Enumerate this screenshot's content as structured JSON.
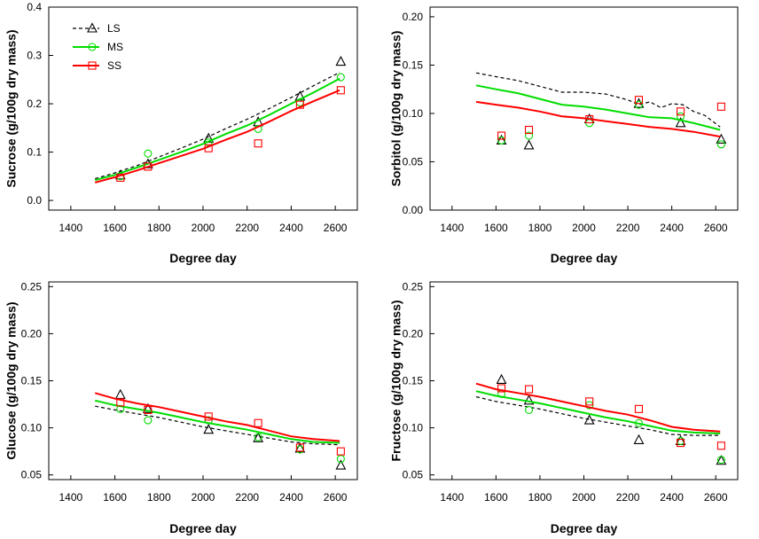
{
  "chart_data": [
    {
      "type": "line",
      "title": "",
      "xlabel": "Degree day",
      "ylabel": "Sucrose (g/100g dry mass)",
      "xlim": [
        1300,
        2700
      ],
      "ylim": [
        -0.02,
        0.4
      ],
      "xticks": [
        1400,
        1600,
        1800,
        2000,
        2200,
        2400,
        2600
      ],
      "yticks": [
        0.0,
        0.1,
        0.2,
        0.3,
        0.4
      ],
      "ytick_labels": [
        "0.0",
        "0.1",
        "0.2",
        "0.3",
        "0.4"
      ],
      "legend": {
        "show": true,
        "placement": "top-left"
      },
      "series": [
        {
          "name": "LS",
          "color": "#000000",
          "style": "dashed",
          "marker": "triangle",
          "line_x": [
            1510,
            1600,
            1700,
            1800,
            1900,
            2000,
            2100,
            2200,
            2300,
            2400,
            2500,
            2620
          ],
          "line_y": [
            0.045,
            0.057,
            0.072,
            0.09,
            0.108,
            0.127,
            0.148,
            0.168,
            0.19,
            0.213,
            0.237,
            0.265
          ],
          "points_x": [
            1625,
            1750,
            2025,
            2250,
            2440,
            2625
          ],
          "points_y": [
            0.052,
            0.075,
            0.128,
            0.162,
            0.215,
            0.287
          ]
        },
        {
          "name": "MS",
          "color": "#00dd00",
          "style": "solid",
          "marker": "circle",
          "line_x": [
            1510,
            1600,
            1700,
            1800,
            1900,
            2000,
            2100,
            2200,
            2300,
            2400,
            2500,
            2620
          ],
          "line_y": [
            0.042,
            0.053,
            0.068,
            0.084,
            0.1,
            0.117,
            0.137,
            0.155,
            0.177,
            0.2,
            0.223,
            0.252
          ],
          "points_x": [
            1625,
            1750,
            2025,
            2250,
            2440,
            2625
          ],
          "points_y": [
            0.05,
            0.097,
            0.12,
            0.148,
            0.203,
            0.255
          ]
        },
        {
          "name": "SS",
          "color": "#ff0000",
          "style": "solid",
          "marker": "square",
          "line_x": [
            1510,
            1600,
            1700,
            1800,
            1900,
            2000,
            2100,
            2200,
            2300,
            2400,
            2500,
            2620
          ],
          "line_y": [
            0.037,
            0.048,
            0.062,
            0.077,
            0.092,
            0.107,
            0.125,
            0.142,
            0.163,
            0.185,
            0.205,
            0.228
          ],
          "points_x": [
            1625,
            1750,
            2025,
            2250,
            2440,
            2625
          ],
          "points_y": [
            0.047,
            0.07,
            0.108,
            0.118,
            0.198,
            0.228
          ]
        }
      ]
    },
    {
      "type": "line",
      "title": "",
      "xlabel": "Degree day",
      "ylabel": "Sorbitol (g/100g dry mass)",
      "xlim": [
        1300,
        2700
      ],
      "ylim": [
        0.0,
        0.21
      ],
      "xticks": [
        1400,
        1600,
        1800,
        2000,
        2200,
        2400,
        2600
      ],
      "yticks": [
        0.0,
        0.05,
        0.1,
        0.15,
        0.2
      ],
      "ytick_labels": [
        "0.00",
        "0.05",
        "0.10",
        "0.15",
        "0.20"
      ],
      "legend": {
        "show": false,
        "placement": ""
      },
      "series": [
        {
          "name": "LS",
          "color": "#000000",
          "style": "dashed",
          "marker": "triangle",
          "line_x": [
            1510,
            1600,
            1700,
            1800,
            1900,
            2000,
            2100,
            2200,
            2250,
            2300,
            2350,
            2400,
            2450,
            2500,
            2550,
            2620
          ],
          "line_y": [
            0.142,
            0.138,
            0.134,
            0.128,
            0.122,
            0.122,
            0.12,
            0.114,
            0.109,
            0.112,
            0.106,
            0.11,
            0.109,
            0.102,
            0.098,
            0.086
          ],
          "points_x": [
            1625,
            1750,
            2025,
            2250,
            2440,
            2625
          ],
          "points_y": [
            0.072,
            0.067,
            0.094,
            0.11,
            0.09,
            0.073
          ]
        },
        {
          "name": "MS",
          "color": "#00dd00",
          "style": "solid",
          "marker": "circle",
          "line_x": [
            1510,
            1600,
            1700,
            1800,
            1900,
            2000,
            2100,
            2200,
            2300,
            2400,
            2500,
            2620
          ],
          "line_y": [
            0.129,
            0.125,
            0.121,
            0.115,
            0.109,
            0.107,
            0.104,
            0.1,
            0.096,
            0.095,
            0.09,
            0.083
          ],
          "points_x": [
            1625,
            1750,
            2025,
            2250,
            2440,
            2625
          ],
          "points_y": [
            0.072,
            0.077,
            0.09,
            0.109,
            0.097,
            0.068
          ]
        },
        {
          "name": "SS",
          "color": "#ff0000",
          "style": "solid",
          "marker": "square",
          "line_x": [
            1510,
            1600,
            1700,
            1800,
            1900,
            2000,
            2100,
            2200,
            2300,
            2400,
            2500,
            2620
          ],
          "line_y": [
            0.112,
            0.109,
            0.106,
            0.102,
            0.097,
            0.095,
            0.092,
            0.089,
            0.086,
            0.084,
            0.081,
            0.076
          ],
          "points_x": [
            1625,
            1750,
            2025,
            2250,
            2440,
            2625
          ],
          "points_y": [
            0.077,
            0.083,
            0.094,
            0.114,
            0.102,
            0.107
          ]
        }
      ]
    },
    {
      "type": "line",
      "title": "",
      "xlabel": "Degree day",
      "ylabel": "Glucose (g/100g dry mass)",
      "xlim": [
        1300,
        2700
      ],
      "ylim": [
        0.045,
        0.255
      ],
      "xticks": [
        1400,
        1600,
        1800,
        2000,
        2200,
        2400,
        2600
      ],
      "yticks": [
        0.05,
        0.1,
        0.15,
        0.2,
        0.25
      ],
      "ytick_labels": [
        "0.05",
        "0.10",
        "0.15",
        "0.20",
        "0.25"
      ],
      "legend": {
        "show": false,
        "placement": ""
      },
      "series": [
        {
          "name": "LS",
          "color": "#000000",
          "style": "dashed",
          "marker": "triangle",
          "line_x": [
            1510,
            1600,
            1700,
            1800,
            1900,
            2000,
            2100,
            2200,
            2300,
            2400,
            2500,
            2620
          ],
          "line_y": [
            0.123,
            0.119,
            0.115,
            0.111,
            0.106,
            0.101,
            0.097,
            0.093,
            0.089,
            0.085,
            0.083,
            0.082
          ],
          "points_x": [
            1625,
            1750,
            2025,
            2250,
            2440,
            2625
          ],
          "points_y": [
            0.135,
            0.12,
            0.098,
            0.089,
            0.078,
            0.06
          ]
        },
        {
          "name": "MS",
          "color": "#00dd00",
          "style": "solid",
          "marker": "circle",
          "line_x": [
            1510,
            1600,
            1700,
            1800,
            1900,
            2000,
            2100,
            2200,
            2300,
            2400,
            2500,
            2620
          ],
          "line_y": [
            0.129,
            0.124,
            0.12,
            0.116,
            0.111,
            0.106,
            0.102,
            0.098,
            0.093,
            0.088,
            0.085,
            0.084
          ],
          "points_x": [
            1625,
            1750,
            2025,
            2250,
            2440,
            2625
          ],
          "points_y": [
            0.12,
            0.108,
            0.108,
            0.09,
            0.077,
            0.067
          ]
        },
        {
          "name": "SS",
          "color": "#ff0000",
          "style": "solid",
          "marker": "square",
          "line_x": [
            1510,
            1600,
            1700,
            1800,
            1900,
            2000,
            2100,
            2200,
            2300,
            2400,
            2500,
            2620
          ],
          "line_y": [
            0.137,
            0.131,
            0.126,
            0.122,
            0.117,
            0.112,
            0.107,
            0.103,
            0.097,
            0.091,
            0.088,
            0.086
          ],
          "points_x": [
            1625,
            1750,
            2025,
            2250,
            2440,
            2625
          ],
          "points_y": [
            0.127,
            0.119,
            0.112,
            0.105,
            0.079,
            0.075
          ]
        }
      ]
    },
    {
      "type": "line",
      "title": "",
      "xlabel": "Degree day",
      "ylabel": "Fructose (g/100g dry mass)",
      "xlim": [
        1300,
        2700
      ],
      "ylim": [
        0.045,
        0.255
      ],
      "xticks": [
        1400,
        1600,
        1800,
        2000,
        2200,
        2400,
        2600
      ],
      "yticks": [
        0.05,
        0.1,
        0.15,
        0.2,
        0.25
      ],
      "ytick_labels": [
        "0.05",
        "0.10",
        "0.15",
        "0.20",
        "0.25"
      ],
      "legend": {
        "show": false,
        "placement": ""
      },
      "series": [
        {
          "name": "LS",
          "color": "#000000",
          "style": "dashed",
          "marker": "triangle",
          "line_x": [
            1510,
            1600,
            1700,
            1800,
            1900,
            2000,
            2100,
            2200,
            2300,
            2400,
            2500,
            2620
          ],
          "line_y": [
            0.133,
            0.128,
            0.124,
            0.12,
            0.115,
            0.11,
            0.106,
            0.102,
            0.098,
            0.093,
            0.092,
            0.092
          ],
          "points_x": [
            1625,
            1750,
            2025,
            2250,
            2440,
            2625
          ],
          "points_y": [
            0.151,
            0.129,
            0.108,
            0.087,
            0.086,
            0.065
          ]
        },
        {
          "name": "MS",
          "color": "#00dd00",
          "style": "solid",
          "marker": "circle",
          "line_x": [
            1510,
            1600,
            1700,
            1800,
            1900,
            2000,
            2100,
            2200,
            2300,
            2400,
            2500,
            2620
          ],
          "line_y": [
            0.139,
            0.134,
            0.13,
            0.126,
            0.121,
            0.116,
            0.111,
            0.107,
            0.102,
            0.097,
            0.095,
            0.094
          ],
          "points_x": [
            1625,
            1750,
            2025,
            2250,
            2440,
            2625
          ],
          "points_y": [
            0.136,
            0.119,
            0.124,
            0.105,
            0.086,
            0.066
          ]
        },
        {
          "name": "SS",
          "color": "#ff0000",
          "style": "solid",
          "marker": "square",
          "line_x": [
            1510,
            1600,
            1700,
            1800,
            1900,
            2000,
            2100,
            2200,
            2300,
            2400,
            2500,
            2620
          ],
          "line_y": [
            0.147,
            0.141,
            0.137,
            0.133,
            0.128,
            0.123,
            0.118,
            0.114,
            0.108,
            0.101,
            0.098,
            0.096
          ],
          "points_x": [
            1625,
            1750,
            2025,
            2250,
            2440,
            2625
          ],
          "points_y": [
            0.142,
            0.141,
            0.128,
            0.12,
            0.084,
            0.081
          ]
        }
      ]
    }
  ]
}
